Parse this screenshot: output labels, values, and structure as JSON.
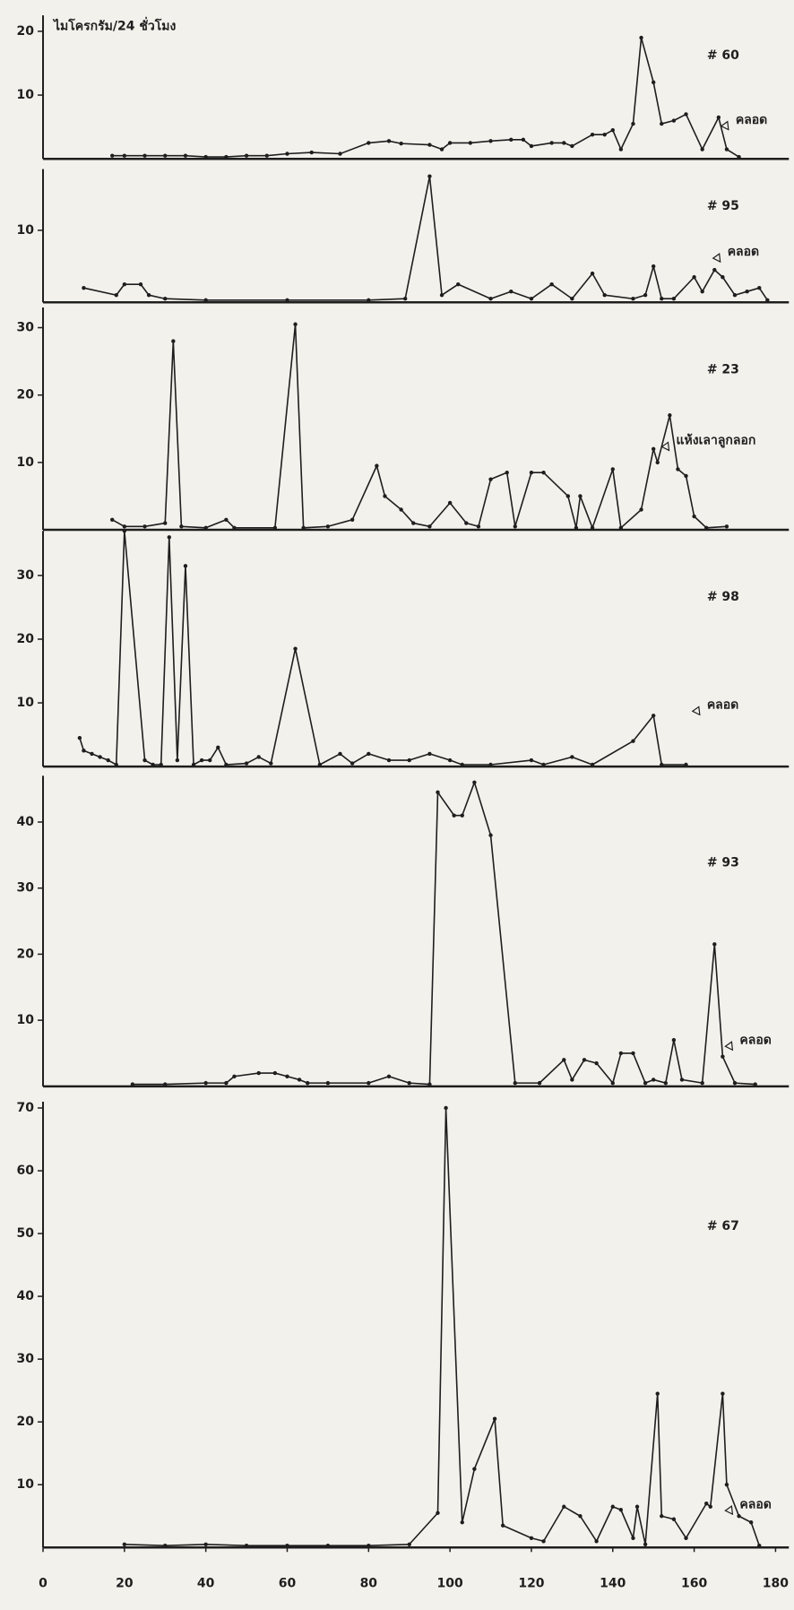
{
  "chart_data": [
    {
      "type": "line",
      "ylabel": "ไมโครกรัม/24 ชั่วโมง",
      "label": "# 60",
      "annotation": "คลอด",
      "color": "#1e1e1e",
      "x": [
        17,
        20,
        25,
        30,
        35,
        40,
        45,
        50,
        55,
        60,
        66,
        73,
        80,
        85,
        88,
        95,
        98,
        100,
        105,
        110,
        115,
        118,
        120,
        125,
        128,
        130,
        135,
        138,
        140,
        142,
        145,
        147,
        150,
        152,
        155,
        158,
        162,
        166,
        168,
        171
      ],
      "values": [
        0.5,
        0.5,
        0.5,
        0.5,
        0.5,
        0.3,
        0.3,
        0.5,
        0.5,
        0.8,
        1,
        0.8,
        2.5,
        2.8,
        2.4,
        2.2,
        1.5,
        2.5,
        2.5,
        2.8,
        3,
        3,
        2,
        2.5,
        2.5,
        2,
        3.8,
        3.8,
        4.5,
        1.5,
        5.5,
        19,
        12,
        5.5,
        6,
        7,
        1.5,
        6.5,
        1.5,
        0.3
      ],
      "xlim": [
        0,
        180
      ],
      "ylim": [
        0,
        22.5
      ],
      "yticks": [
        10,
        20
      ]
    },
    {
      "type": "line",
      "label": "# 95",
      "annotation": "คลอด",
      "color": "#1e1e1e",
      "x": [
        10,
        18,
        20,
        24,
        26,
        30,
        40,
        60,
        80,
        89,
        95,
        98,
        102,
        110,
        115,
        120,
        125,
        130,
        135,
        138,
        145,
        148,
        150,
        152,
        155,
        160,
        162,
        165,
        167,
        170,
        173,
        176,
        178
      ],
      "values": [
        2,
        1,
        2.5,
        2.5,
        1,
        0.5,
        0.3,
        0.3,
        0.3,
        0.5,
        17.5,
        1,
        2.5,
        0.5,
        1.5,
        0.5,
        2.5,
        0.5,
        4,
        1,
        0.5,
        1,
        5,
        0.5,
        0.5,
        3.5,
        1.5,
        4.5,
        3.5,
        1,
        1.5,
        2,
        0.3
      ],
      "xlim": [
        0,
        180
      ],
      "ylim": [
        0,
        18.5
      ],
      "yticks": [
        10
      ]
    },
    {
      "type": "line",
      "label": "# 23",
      "annotation": "แห้งเลาลูกลอก",
      "color": "#1e1e1e",
      "x": [
        17,
        20,
        25,
        30,
        32,
        34,
        40,
        45,
        47,
        57,
        62,
        64,
        70,
        76,
        82,
        84,
        88,
        91,
        95,
        100,
        104,
        107,
        110,
        114,
        116,
        120,
        123,
        129,
        131,
        132,
        135,
        140,
        142,
        147,
        150,
        151,
        154,
        156,
        158,
        160,
        163,
        168
      ],
      "values": [
        1.5,
        0.5,
        0.5,
        1,
        28,
        0.5,
        0.3,
        1.5,
        0.3,
        0.3,
        30.5,
        0.3,
        0.5,
        1.5,
        9.5,
        5,
        3,
        1,
        0.5,
        4,
        1,
        0.5,
        7.5,
        8.5,
        0.5,
        8.5,
        8.5,
        5,
        0.3,
        5,
        0.3,
        9,
        0.3,
        3,
        12,
        10,
        17,
        9,
        8,
        2,
        0.3,
        0.5
      ],
      "xlim": [
        0,
        180
      ],
      "ylim": [
        0,
        33
      ],
      "yticks": [
        10,
        20,
        30
      ]
    },
    {
      "type": "line",
      "label": "# 98",
      "annotation": "คลอด",
      "color": "#1e1e1e",
      "x": [
        9,
        10,
        12,
        14,
        16,
        18,
        20,
        25,
        27,
        29,
        31,
        33,
        35,
        37,
        39,
        41,
        43,
        45,
        50,
        53,
        56,
        62,
        68,
        73,
        76,
        80,
        85,
        90,
        95,
        100,
        103,
        110,
        120,
        123,
        130,
        135,
        145,
        150,
        152,
        158
      ],
      "values": [
        4.5,
        2.5,
        2,
        1.5,
        1,
        0.3,
        37,
        1,
        0.3,
        0.3,
        36,
        1,
        31.5,
        0.3,
        1,
        1,
        3,
        0.3,
        0.5,
        1.5,
        0.5,
        18.5,
        0.3,
        2,
        0.5,
        2,
        1,
        1,
        2,
        1,
        0.3,
        0.3,
        1,
        0.3,
        1.5,
        0.3,
        4,
        8,
        0.3,
        0.3
      ],
      "xlim": [
        0,
        180
      ],
      "ylim": [
        0,
        37
      ],
      "yticks": [
        10,
        20,
        30
      ]
    },
    {
      "type": "line",
      "label": "# 93",
      "annotation": "คลอด",
      "color": "#1e1e1e",
      "x": [
        22,
        30,
        40,
        45,
        47,
        53,
        57,
        60,
        63,
        65,
        70,
        80,
        85,
        90,
        95,
        97,
        101,
        103,
        106,
        110,
        116,
        122,
        128,
        130,
        133,
        136,
        140,
        142,
        145,
        148,
        150,
        153,
        155,
        157,
        162,
        165,
        167,
        170,
        175
      ],
      "values": [
        0.3,
        0.3,
        0.5,
        0.5,
        1.5,
        2,
        2,
        1.5,
        1,
        0.5,
        0.5,
        0.5,
        1.5,
        0.5,
        0.3,
        44.5,
        41,
        41,
        46,
        38,
        0.5,
        0.5,
        4,
        1,
        4,
        3.5,
        0.5,
        5,
        5,
        0.5,
        1,
        0.5,
        7,
        1,
        0.5,
        21.5,
        4.5,
        0.5,
        0.3
      ],
      "xlim": [
        0,
        180
      ],
      "ylim": [
        0,
        47
      ],
      "yticks": [
        10,
        20,
        30,
        40
      ]
    },
    {
      "type": "line",
      "label": "# 67",
      "annotation": "คลอด",
      "color": "#1e1e1e",
      "x": [
        20,
        30,
        40,
        50,
        60,
        70,
        80,
        90,
        97,
        99,
        103,
        106,
        111,
        113,
        120,
        123,
        128,
        132,
        136,
        140,
        142,
        145,
        146,
        148,
        151,
        152,
        155,
        158,
        163,
        164,
        167,
        168,
        171,
        174,
        176
      ],
      "values": [
        0.5,
        0.3,
        0.5,
        0.3,
        0.3,
        0.3,
        0.3,
        0.5,
        5.5,
        70,
        4,
        12.5,
        20.5,
        3.5,
        1.5,
        1,
        6.5,
        5,
        1,
        6.5,
        6,
        1.5,
        6.5,
        0.5,
        24.5,
        5,
        4.5,
        1.5,
        7,
        6.5,
        24.5,
        10,
        5,
        4,
        0.3
      ],
      "xlim": [
        0,
        180
      ],
      "ylim": [
        0,
        71
      ],
      "yticks": [
        10,
        20,
        30,
        40,
        50,
        60,
        70
      ],
      "xticks": [
        0,
        20,
        40,
        60,
        80,
        100,
        120,
        140,
        160,
        180
      ]
    }
  ]
}
